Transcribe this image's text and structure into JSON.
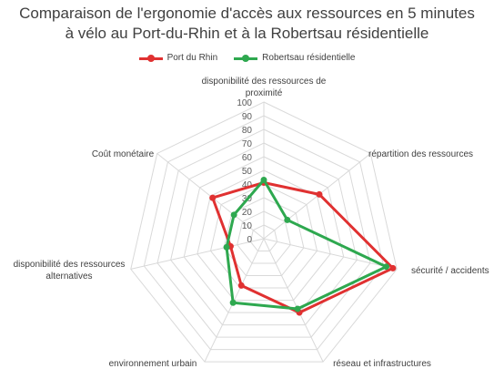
{
  "chart_data": {
    "type": "radar",
    "title": "Comparaison de l'ergonomie d'accès aux ressources en 5 minutes",
    "subtitle": "à vélo au Port-du-Rhin et à la Robertsau résidentielle",
    "categories": [
      [
        "disponibilité des ressources de",
        "proximité"
      ],
      [
        "répartition des ressources"
      ],
      [
        "sécurité / accidents"
      ],
      [
        "réseau et infrastructures"
      ],
      [
        "environnement urbain"
      ],
      [
        "disponibilité des ressources",
        "alternatives"
      ],
      [
        "Coût monétaire"
      ]
    ],
    "ticks": [
      "0",
      "10",
      "20",
      "30",
      "40",
      "50",
      "60",
      "70",
      "80",
      "90",
      "100"
    ],
    "rlim": [
      0,
      100
    ],
    "series": [
      {
        "name": "Port du Rhin",
        "color": "#e03131",
        "values": [
          41,
          52,
          97,
          60,
          38,
          25,
          48
        ]
      },
      {
        "name": "Robertsau résidentielle",
        "color": "#2ea84f",
        "values": [
          43,
          22,
          92,
          57,
          52,
          28,
          28
        ]
      }
    ],
    "grid_color": "#d9d9d9",
    "legend_position": "top"
  }
}
